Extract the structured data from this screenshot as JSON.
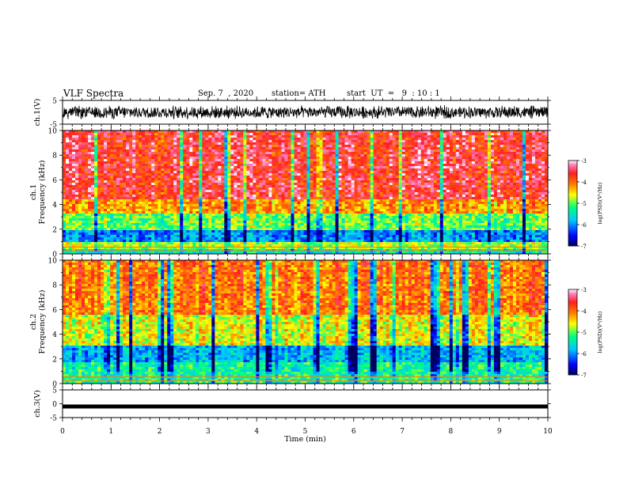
{
  "header": {
    "title": "VLF Spectra",
    "date": "Sep. 7  , 2020",
    "station": "station= ATH",
    "start_ut": "start  UT  =   9  : 10 : 1"
  },
  "colors": {
    "palette": [
      "#000060",
      "#0000ff",
      "#00c8ff",
      "#00ff80",
      "#ffff00",
      "#ff8000",
      "#ff2020",
      "#ff80c0",
      "#ffffff"
    ]
  },
  "chart_data": [
    {
      "type": "line",
      "name": "ch1-waveform",
      "ylabel": "ch.1(V)",
      "ylim": [
        -5,
        5
      ],
      "y_ticks": [
        "5",
        "-5"
      ],
      "signal_range": [
        -3,
        3
      ]
    },
    {
      "type": "heatmap",
      "name": "ch1-spectrogram",
      "ylabel": "ch.1\nFrequency (kHz)",
      "ylim": [
        0,
        10
      ],
      "y_ticks": [
        "0",
        "2",
        "4",
        "6",
        "8",
        "10"
      ],
      "description_bands_logPSD": [
        {
          "from_khz": 0,
          "to_khz": 0.3,
          "level": -5.5
        },
        {
          "from_khz": 0.3,
          "to_khz": 1.0,
          "level": -4.8
        },
        {
          "from_khz": 1.0,
          "to_khz": 2.0,
          "level": -6.0
        },
        {
          "from_khz": 2.0,
          "to_khz": 3.2,
          "level": -5.0
        },
        {
          "from_khz": 3.2,
          "to_khz": 4.5,
          "level": -4.2
        },
        {
          "from_khz": 4.5,
          "to_khz": 10.0,
          "level": -3.6
        }
      ],
      "colorbar": {
        "label": "log(PSD)(V²/Hz)",
        "range": [
          -7,
          -3
        ],
        "ticks": [
          "-3",
          "-4",
          "-5",
          "-6",
          "-7"
        ]
      }
    },
    {
      "type": "heatmap",
      "name": "ch2-spectrogram",
      "ylabel": "ch.2\nFrequency (kHz)",
      "ylim": [
        0,
        10
      ],
      "y_ticks": [
        "0",
        "2",
        "4",
        "6",
        "8",
        "10"
      ],
      "description_bands_logPSD": [
        {
          "from_khz": 0,
          "to_khz": 0.5,
          "level": -5.2
        },
        {
          "from_khz": 0.5,
          "to_khz": 1.8,
          "level": -5.3
        },
        {
          "from_khz": 1.8,
          "to_khz": 3.0,
          "level": -5.8
        },
        {
          "from_khz": 3.0,
          "to_khz": 5.5,
          "level": -4.6
        },
        {
          "from_khz": 5.5,
          "to_khz": 10.0,
          "level": -4.0
        }
      ],
      "colorbar": {
        "label": "log(PSD)(V²/Hz)",
        "range": [
          -7,
          -3
        ],
        "ticks": [
          "-3",
          "-4",
          "-5",
          "-6",
          "-7"
        ]
      }
    },
    {
      "type": "line",
      "name": "ch3-waveform",
      "ylabel": "ch.3(V)",
      "ylim": [
        -5,
        5
      ],
      "y_ticks": [
        "5",
        "0",
        "-5"
      ],
      "xlabel": "Time (min)",
      "xlim": [
        0,
        10
      ],
      "x_ticks": [
        "0",
        "1",
        "2",
        "3",
        "4",
        "5",
        "6",
        "7",
        "8",
        "9",
        "10"
      ],
      "signal_value": -1
    }
  ]
}
